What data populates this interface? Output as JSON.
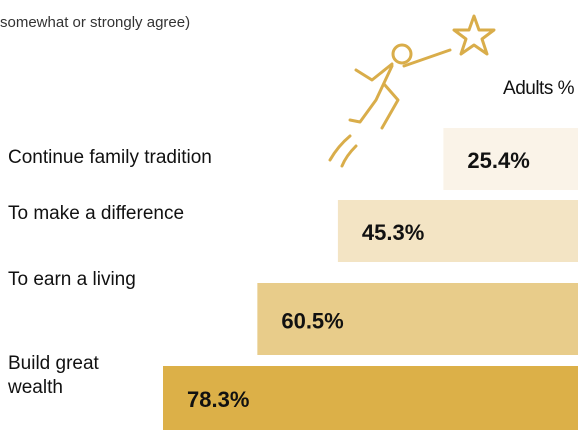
{
  "chart_data": {
    "type": "bar",
    "orientation": "horizontal",
    "subtitle": "somewhat or strongly agree)",
    "legend_title": "Adults %",
    "categories": [
      "Continue family tradition",
      "To make a difference",
      "To earn a living",
      "Build great wealth"
    ],
    "values": [
      25.4,
      45.3,
      60.5,
      78.3
    ],
    "value_labels": [
      "25.4%",
      "45.3%",
      "60.5%",
      "78.3%"
    ],
    "colors": [
      "#faf3e8",
      "#f3e4c4",
      "#e8cc8a",
      "#dcb048"
    ]
  }
}
